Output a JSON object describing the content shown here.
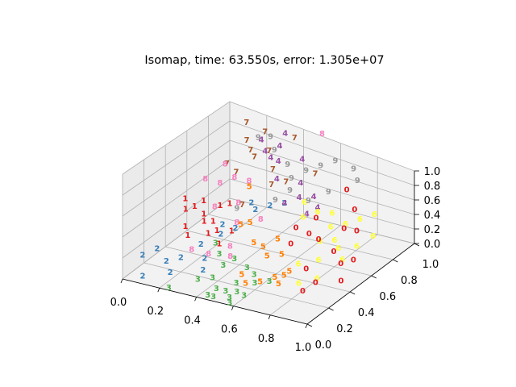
{
  "chart_data": {
    "type": "scatter",
    "title": "Isomap, time: 63.550s, error: 1.305e+07",
    "xlim": [
      0,
      1
    ],
    "ylim": [
      0,
      1
    ],
    "zlim": [
      0,
      1
    ],
    "grid": true,
    "legend": "none",
    "x_ticks": [
      "0.0",
      "0.2",
      "0.4",
      "0.6",
      "0.8",
      "1.0"
    ],
    "y_ticks": [
      "0.0",
      "0.2",
      "0.4",
      "0.6",
      "0.8",
      "1.0"
    ],
    "z_ticks": [
      "0.0",
      "0.2",
      "0.4",
      "0.6",
      "0.8",
      "1.0"
    ],
    "colors": {
      "0": "#e41a1c",
      "1": "#e41a1c",
      "2": "#377eb8",
      "3": "#4daf4a",
      "4": "#984ea3",
      "5": "#ff7f00",
      "6": "#ffff33",
      "7": "#a65628",
      "8": "#f781bf",
      "9": "#999999"
    },
    "pane_color": "#f2f2f2",
    "points": [
      {
        "label": "0",
        "x": 0.88,
        "y": 0.55,
        "z": 0.55
      },
      {
        "label": "0",
        "x": 0.92,
        "y": 0.6,
        "z": 0.5
      },
      {
        "label": "0",
        "x": 0.9,
        "y": 0.42,
        "z": 0.4
      },
      {
        "label": "0",
        "x": 0.95,
        "y": 0.4,
        "z": 0.3
      },
      {
        "label": "0",
        "x": 0.98,
        "y": 0.35,
        "z": 0.15
      },
      {
        "label": "0",
        "x": 0.96,
        "y": 0.5,
        "z": 0.25
      },
      {
        "label": "0",
        "x": 0.85,
        "y": 0.7,
        "z": 0.62
      },
      {
        "label": "0",
        "x": 0.8,
        "y": 0.45,
        "z": 0.45
      },
      {
        "label": "0",
        "x": 0.75,
        "y": 0.8,
        "z": 0.7
      },
      {
        "label": "0",
        "x": 0.82,
        "y": 0.3,
        "z": 0.25
      },
      {
        "label": "0",
        "x": 0.72,
        "y": 0.5,
        "z": 0.42
      },
      {
        "label": "0",
        "x": 0.7,
        "y": 0.6,
        "z": 0.5
      },
      {
        "label": "0",
        "x": 0.9,
        "y": 0.25,
        "z": 0.18
      },
      {
        "label": "0",
        "x": 0.86,
        "y": 0.2,
        "z": 0.1
      },
      {
        "label": "0",
        "x": 0.62,
        "y": 0.55,
        "z": 0.38
      },
      {
        "label": "0",
        "x": 0.65,
        "y": 0.45,
        "z": 0.3
      },
      {
        "label": "1",
        "x": 0.05,
        "y": 0.5,
        "z": 0.4
      },
      {
        "label": "1",
        "x": 0.08,
        "y": 0.45,
        "z": 0.35
      },
      {
        "label": "1",
        "x": 0.1,
        "y": 0.5,
        "z": 0.35
      },
      {
        "label": "1",
        "x": 0.12,
        "y": 0.55,
        "z": 0.38
      },
      {
        "label": "1",
        "x": 0.15,
        "y": 0.5,
        "z": 0.3
      },
      {
        "label": "1",
        "x": 0.18,
        "y": 0.45,
        "z": 0.28
      },
      {
        "label": "1",
        "x": 0.2,
        "y": 0.5,
        "z": 0.25
      },
      {
        "label": "1",
        "x": 0.22,
        "y": 0.42,
        "z": 0.2
      },
      {
        "label": "1",
        "x": 0.25,
        "y": 0.45,
        "z": 0.22
      },
      {
        "label": "1",
        "x": 0.12,
        "y": 0.38,
        "z": 0.25
      },
      {
        "label": "1",
        "x": 0.28,
        "y": 0.42,
        "z": 0.12
      },
      {
        "label": "1",
        "x": 0.15,
        "y": 0.35,
        "z": 0.2
      },
      {
        "label": "1",
        "x": 0.18,
        "y": 0.6,
        "z": 0.32
      },
      {
        "label": "1",
        "x": 0.3,
        "y": 0.5,
        "z": 0.2
      },
      {
        "label": "1",
        "x": 0.22,
        "y": 0.62,
        "z": 0.35
      },
      {
        "label": "2",
        "x": 0.1,
        "y": 0.15,
        "z": 0.2
      },
      {
        "label": "2",
        "x": 0.15,
        "y": 0.15,
        "z": 0.1
      },
      {
        "label": "2",
        "x": 0.05,
        "y": 0.1,
        "z": 0.15
      },
      {
        "label": "2",
        "x": 0.2,
        "y": 0.2,
        "z": 0.12
      },
      {
        "label": "2",
        "x": 0.25,
        "y": 0.3,
        "z": 0.2
      },
      {
        "label": "2",
        "x": 0.3,
        "y": 0.4,
        "z": 0.25
      },
      {
        "label": "2",
        "x": 0.35,
        "y": 0.45,
        "z": 0.3
      },
      {
        "label": "2",
        "x": 0.2,
        "y": 0.1,
        "z": 0.05
      },
      {
        "label": "2",
        "x": 0.08,
        "y": 0.05,
        "z": 0.0
      },
      {
        "label": "2",
        "x": 0.3,
        "y": 0.25,
        "z": 0.12
      },
      {
        "label": "2",
        "x": 0.4,
        "y": 0.55,
        "z": 0.45
      },
      {
        "label": "2",
        "x": 0.35,
        "y": 0.6,
        "z": 0.45
      },
      {
        "label": "2",
        "x": 0.45,
        "y": 0.6,
        "z": 0.48
      },
      {
        "label": "2",
        "x": 0.28,
        "y": 0.45,
        "z": 0.3
      },
      {
        "label": "2",
        "x": 0.5,
        "y": 0.65,
        "z": 0.5
      },
      {
        "label": "2",
        "x": 0.32,
        "y": 0.2,
        "z": 0.05
      },
      {
        "label": "3",
        "x": 0.35,
        "y": 0.1,
        "z": 0.05
      },
      {
        "label": "3",
        "x": 0.4,
        "y": 0.15,
        "z": 0.05
      },
      {
        "label": "3",
        "x": 0.45,
        "y": 0.1,
        "z": 0.0
      },
      {
        "label": "3",
        "x": 0.5,
        "y": 0.1,
        "z": 0.0
      },
      {
        "label": "3",
        "x": 0.55,
        "y": 0.12,
        "z": 0.0
      },
      {
        "label": "3",
        "x": 0.6,
        "y": 0.1,
        "z": 0.0
      },
      {
        "label": "3",
        "x": 0.5,
        "y": 0.2,
        "z": 0.0
      },
      {
        "label": "3",
        "x": 0.55,
        "y": 0.05,
        "z": 0.0
      },
      {
        "label": "3",
        "x": 0.45,
        "y": 0.02,
        "z": 0.0
      },
      {
        "label": "3",
        "x": 0.6,
        "y": 0.2,
        "z": 0.05
      },
      {
        "label": "3",
        "x": 0.65,
        "y": 0.25,
        "z": 0.05
      },
      {
        "label": "3",
        "x": 0.4,
        "y": 0.25,
        "z": 0.1
      },
      {
        "label": "3",
        "x": 0.35,
        "y": 0.3,
        "z": 0.15
      },
      {
        "label": "3",
        "x": 0.3,
        "y": 0.35,
        "z": 0.2
      },
      {
        "label": "3",
        "x": 0.42,
        "y": 0.32,
        "z": 0.12
      },
      {
        "label": "3",
        "x": 0.5,
        "y": 0.3,
        "z": 0.08
      },
      {
        "label": "3",
        "x": 0.55,
        "y": 0.28,
        "z": 0.05
      },
      {
        "label": "3",
        "x": 0.48,
        "y": 0.02,
        "z": 0.0
      },
      {
        "label": "3",
        "x": 0.58,
        "y": 0.0,
        "z": 0.0
      },
      {
        "label": "3",
        "x": 0.25,
        "y": 0.0,
        "z": 0.0
      },
      {
        "label": "4",
        "x": 0.2,
        "y": 0.95,
        "z": 0.75
      },
      {
        "label": "4",
        "x": 0.3,
        "y": 0.95,
        "z": 0.75
      },
      {
        "label": "4",
        "x": 0.25,
        "y": 0.9,
        "z": 0.7
      },
      {
        "label": "4",
        "x": 0.45,
        "y": 0.9,
        "z": 0.75
      },
      {
        "label": "4",
        "x": 0.35,
        "y": 0.85,
        "z": 0.7
      },
      {
        "label": "4",
        "x": 0.4,
        "y": 0.75,
        "z": 0.62
      },
      {
        "label": "4",
        "x": 0.5,
        "y": 0.8,
        "z": 0.6
      },
      {
        "label": "4",
        "x": 0.55,
        "y": 0.7,
        "z": 0.55
      },
      {
        "label": "4",
        "x": 0.6,
        "y": 0.75,
        "z": 0.55
      },
      {
        "label": "4",
        "x": 0.5,
        "y": 0.65,
        "z": 0.5
      },
      {
        "label": "4",
        "x": 0.65,
        "y": 0.7,
        "z": 0.5
      },
      {
        "label": "4",
        "x": 0.3,
        "y": 1.0,
        "z": 0.85
      },
      {
        "label": "4",
        "x": 0.28,
        "y": 0.9,
        "z": 0.65
      },
      {
        "label": "4",
        "x": 0.62,
        "y": 0.65,
        "z": 0.45
      },
      {
        "label": "5",
        "x": 0.45,
        "y": 0.45,
        "z": 0.2
      },
      {
        "label": "5",
        "x": 0.5,
        "y": 0.45,
        "z": 0.18
      },
      {
        "label": "5",
        "x": 0.55,
        "y": 0.4,
        "z": 0.15
      },
      {
        "label": "5",
        "x": 0.6,
        "y": 0.45,
        "z": 0.15
      },
      {
        "label": "5",
        "x": 0.7,
        "y": 0.35,
        "z": 0.1
      },
      {
        "label": "5",
        "x": 0.7,
        "y": 0.25,
        "z": 0.05
      },
      {
        "label": "5",
        "x": 0.65,
        "y": 0.3,
        "z": 0.05
      },
      {
        "label": "5",
        "x": 0.6,
        "y": 0.25,
        "z": 0.02
      },
      {
        "label": "5",
        "x": 0.55,
        "y": 0.2,
        "z": 0.02
      },
      {
        "label": "5",
        "x": 0.5,
        "y": 0.25,
        "z": 0.05
      },
      {
        "label": "5",
        "x": 0.4,
        "y": 0.5,
        "z": 0.35
      },
      {
        "label": "5",
        "x": 0.35,
        "y": 0.5,
        "z": 0.3
      },
      {
        "label": "5",
        "x": 0.7,
        "y": 0.3,
        "z": 0.1
      },
      {
        "label": "5",
        "x": 0.55,
        "y": 0.5,
        "z": 0.25
      },
      {
        "label": "5",
        "x": 0.28,
        "y": 0.7,
        "z": 0.5
      },
      {
        "label": "6",
        "x": 0.9,
        "y": 0.8,
        "z": 0.5
      },
      {
        "label": "6",
        "x": 0.85,
        "y": 0.75,
        "z": 0.45
      },
      {
        "label": "6",
        "x": 0.8,
        "y": 0.7,
        "z": 0.4
      },
      {
        "label": "6",
        "x": 0.75,
        "y": 0.65,
        "z": 0.38
      },
      {
        "label": "6",
        "x": 0.7,
        "y": 0.75,
        "z": 0.42
      },
      {
        "label": "6",
        "x": 0.8,
        "y": 0.6,
        "z": 0.3
      },
      {
        "label": "6",
        "x": 0.85,
        "y": 0.55,
        "z": 0.28
      },
      {
        "label": "6",
        "x": 0.9,
        "y": 0.5,
        "z": 0.22
      },
      {
        "label": "6",
        "x": 0.8,
        "y": 0.45,
        "z": 0.2
      },
      {
        "label": "6",
        "x": 0.65,
        "y": 0.7,
        "z": 0.45
      },
      {
        "label": "6",
        "x": 0.6,
        "y": 0.65,
        "z": 0.4
      },
      {
        "label": "6",
        "x": 0.55,
        "y": 0.75,
        "z": 0.45
      },
      {
        "label": "6",
        "x": 0.95,
        "y": 0.7,
        "z": 0.35
      },
      {
        "label": "6",
        "x": 0.92,
        "y": 0.6,
        "z": 0.3
      },
      {
        "label": "6",
        "x": 0.75,
        "y": 0.55,
        "z": 0.3
      },
      {
        "label": "6",
        "x": 0.85,
        "y": 0.35,
        "z": 0.1
      },
      {
        "label": "6",
        "x": 0.78,
        "y": 0.3,
        "z": 0.05
      },
      {
        "label": "6",
        "x": 0.72,
        "y": 0.4,
        "z": 0.15
      },
      {
        "label": "7",
        "x": 0.15,
        "y": 0.9,
        "z": 0.75
      },
      {
        "label": "7",
        "x": 0.2,
        "y": 0.85,
        "z": 0.72
      },
      {
        "label": "7",
        "x": 0.25,
        "y": 0.8,
        "z": 0.72
      },
      {
        "label": "7",
        "x": 0.3,
        "y": 0.85,
        "z": 0.78
      },
      {
        "label": "7",
        "x": 0.22,
        "y": 0.95,
        "z": 0.85
      },
      {
        "label": "7",
        "x": 0.35,
        "y": 0.8,
        "z": 0.65
      },
      {
        "label": "7",
        "x": 0.4,
        "y": 0.7,
        "z": 0.6
      },
      {
        "label": "7",
        "x": 0.45,
        "y": 0.75,
        "z": 0.62
      },
      {
        "label": "7",
        "x": 0.1,
        "y": 0.8,
        "z": 0.55
      },
      {
        "label": "7",
        "x": 0.3,
        "y": 0.6,
        "z": 0.4
      },
      {
        "label": "7",
        "x": 0.38,
        "y": 0.95,
        "z": 0.9
      },
      {
        "label": "7",
        "x": 0.12,
        "y": 0.95,
        "z": 0.88
      },
      {
        "label": "7",
        "x": 0.55,
        "y": 0.85,
        "z": 0.7
      },
      {
        "label": "7",
        "x": 0.18,
        "y": 0.75,
        "z": 0.55
      },
      {
        "label": "8",
        "x": 0.1,
        "y": 0.6,
        "z": 0.55
      },
      {
        "label": "8",
        "x": 0.15,
        "y": 0.65,
        "z": 0.5
      },
      {
        "label": "8",
        "x": 0.2,
        "y": 0.7,
        "z": 0.55
      },
      {
        "label": "8",
        "x": 0.12,
        "y": 0.75,
        "z": 0.6
      },
      {
        "label": "8",
        "x": 0.25,
        "y": 0.65,
        "z": 0.35
      },
      {
        "label": "8",
        "x": 0.3,
        "y": 0.55,
        "z": 0.25
      },
      {
        "label": "8",
        "x": 0.35,
        "y": 0.4,
        "z": 0.15
      },
      {
        "label": "8",
        "x": 0.2,
        "y": 0.3,
        "z": 0.12
      },
      {
        "label": "8",
        "x": 0.28,
        "y": 0.32,
        "z": 0.1
      },
      {
        "label": "8",
        "x": 0.5,
        "y": 1.0,
        "z": 1.0
      },
      {
        "label": "8",
        "x": 0.18,
        "y": 0.55,
        "z": 0.35
      },
      {
        "label": "8",
        "x": 0.25,
        "y": 0.75,
        "z": 0.5
      },
      {
        "label": "8",
        "x": 0.4,
        "y": 0.6,
        "z": 0.3
      },
      {
        "label": "8",
        "x": 0.38,
        "y": 0.35,
        "z": 0.1
      },
      {
        "label": "9",
        "x": 0.2,
        "y": 0.92,
        "z": 0.8
      },
      {
        "label": "9",
        "x": 0.25,
        "y": 0.95,
        "z": 0.82
      },
      {
        "label": "9",
        "x": 0.3,
        "y": 0.9,
        "z": 0.75
      },
      {
        "label": "9",
        "x": 0.4,
        "y": 0.85,
        "z": 0.7
      },
      {
        "label": "9",
        "x": 0.5,
        "y": 0.85,
        "z": 0.7
      },
      {
        "label": "9",
        "x": 0.55,
        "y": 0.9,
        "z": 0.75
      },
      {
        "label": "9",
        "x": 0.6,
        "y": 0.95,
        "z": 0.8
      },
      {
        "label": "9",
        "x": 0.7,
        "y": 0.95,
        "z": 0.78
      },
      {
        "label": "9",
        "x": 0.5,
        "y": 0.7,
        "z": 0.6
      },
      {
        "label": "9",
        "x": 0.6,
        "y": 0.7,
        "z": 0.55
      },
      {
        "label": "9",
        "x": 0.65,
        "y": 0.8,
        "z": 0.6
      },
      {
        "label": "9",
        "x": 0.45,
        "y": 0.65,
        "z": 0.5
      },
      {
        "label": "9",
        "x": 0.3,
        "y": 0.55,
        "z": 0.4
      },
      {
        "label": "9",
        "x": 0.75,
        "y": 0.9,
        "z": 0.72
      },
      {
        "label": "9",
        "x": 0.45,
        "y": 0.8,
        "z": 0.62
      }
    ]
  }
}
